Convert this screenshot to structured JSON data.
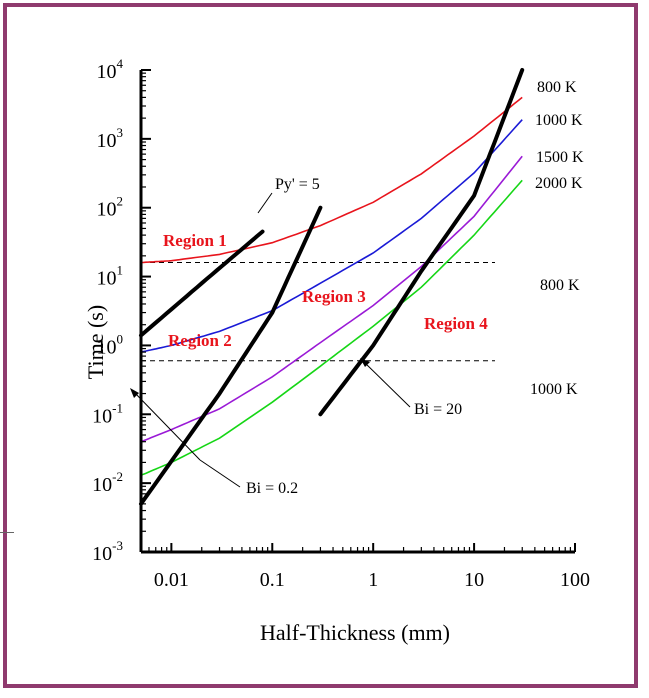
{
  "chart_data": {
    "type": "line",
    "x_axis": {
      "label": "Half-Thickness (mm)",
      "scale": "log",
      "range": [
        0.005,
        100
      ],
      "ticks": [
        {
          "value": 0.01,
          "label": "0.01"
        },
        {
          "value": 0.1,
          "label": "0.1"
        },
        {
          "value": 1,
          "label": "1"
        },
        {
          "value": 10,
          "label": "10"
        },
        {
          "value": 100,
          "label": "100"
        }
      ]
    },
    "y_axis": {
      "label": "Time (s)",
      "scale": "log",
      "range": [
        0.001,
        10000
      ],
      "ticks": [
        {
          "value": 0.001,
          "base": "10",
          "exp": "-3"
        },
        {
          "value": 0.01,
          "base": "10",
          "exp": "-2"
        },
        {
          "value": 0.1,
          "base": "10",
          "exp": "-1"
        },
        {
          "value": 1,
          "base": "10",
          "exp": "0"
        },
        {
          "value": 10,
          "base": "10",
          "exp": "1"
        },
        {
          "value": 100,
          "base": "10",
          "exp": "2"
        },
        {
          "value": 1000,
          "base": "10",
          "exp": "3"
        },
        {
          "value": 10000,
          "base": "10",
          "exp": "4"
        }
      ]
    },
    "series": [
      {
        "name": "800 K",
        "color": "#e8141c",
        "x": [
          0.005,
          0.01,
          0.03,
          0.1,
          0.3,
          1,
          3,
          10,
          30
        ],
        "y": [
          16,
          17,
          21,
          31,
          55,
          120,
          310,
          1100,
          4000
        ]
      },
      {
        "name": "1000 K",
        "color": "#1a1ad6",
        "x": [
          0.005,
          0.01,
          0.03,
          0.1,
          0.3,
          1,
          3,
          10,
          30
        ],
        "y": [
          0.8,
          1.0,
          1.6,
          3.2,
          8,
          22,
          70,
          320,
          1900
        ]
      },
      {
        "name": "1500 K",
        "color": "#9a1ad6",
        "x": [
          0.005,
          0.01,
          0.03,
          0.1,
          0.3,
          1,
          3,
          10,
          30
        ],
        "y": [
          0.04,
          0.06,
          0.12,
          0.35,
          1.1,
          3.8,
          14,
          75,
          560
        ]
      },
      {
        "name": "2000 K",
        "color": "#16d616",
        "x": [
          0.005,
          0.01,
          0.03,
          0.1,
          0.3,
          1,
          3,
          10,
          30
        ],
        "y": [
          0.013,
          0.02,
          0.045,
          0.15,
          0.5,
          1.9,
          7,
          40,
          250
        ]
      }
    ],
    "boundaries": [
      {
        "label": "Py' = 5",
        "x": [
          0.005,
          0.02,
          0.08
        ],
        "y": [
          1.4,
          8,
          45
        ]
      },
      {
        "label": "Bi = 0.2",
        "x": [
          0.005,
          0.03,
          0.1,
          0.3
        ],
        "y": [
          0.005,
          0.2,
          3,
          100
        ]
      },
      {
        "label": "Bi = 20",
        "x": [
          0.3,
          1,
          3,
          10,
          30
        ],
        "y": [
          0.1,
          1.0,
          12,
          150,
          10000
        ]
      }
    ],
    "reference_lines": [
      {
        "label": "800 K",
        "y": 16
      },
      {
        "label": "1000 K",
        "y": 0.6
      }
    ],
    "region_labels": [
      "Region 1",
      "Region 2",
      "Region 3",
      "Region 4"
    ],
    "region_color": "#e8141c",
    "boundary_color": "#000000"
  }
}
